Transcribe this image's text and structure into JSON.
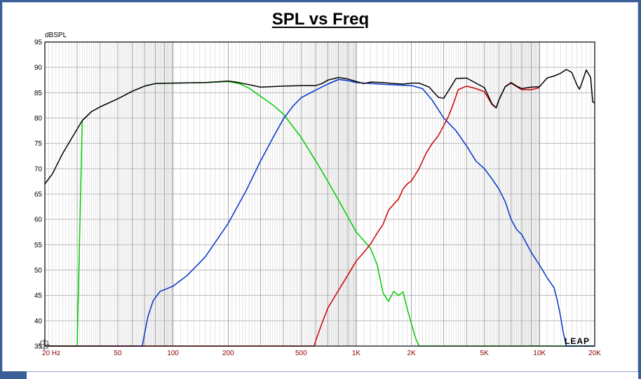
{
  "chart_data": {
    "type": "line",
    "title": "SPL vs Freq",
    "ylabel": "dBSPL",
    "xlabel": "",
    "x_scale": "log",
    "xlim": [
      20,
      20000
    ],
    "ylim": [
      35,
      95
    ],
    "y_ticks": [
      35,
      40,
      45,
      50,
      55,
      60,
      65,
      70,
      75,
      80,
      85,
      90,
      95
    ],
    "x_ticks": [
      {
        "value": 20,
        "label": "20 Hz"
      },
      {
        "value": 50,
        "label": "50"
      },
      {
        "value": 100,
        "label": "100"
      },
      {
        "value": 200,
        "label": "200"
      },
      {
        "value": 500,
        "label": "500"
      },
      {
        "value": 1000,
        "label": "1K"
      },
      {
        "value": 2000,
        "label": "2K"
      },
      {
        "value": 5000,
        "label": "5K"
      },
      {
        "value": 10000,
        "label": "10K"
      },
      {
        "value": 20000,
        "label": "20K"
      }
    ],
    "grid": true,
    "watermark": "LEAP",
    "series": [
      {
        "color": "#000000",
        "points": [
          [
            20,
            67
          ],
          [
            22,
            69
          ],
          [
            25,
            73
          ],
          [
            28,
            76
          ],
          [
            32,
            79.5
          ],
          [
            36,
            81.3
          ],
          [
            40,
            82.2
          ],
          [
            50,
            83.8
          ],
          [
            60,
            85.3
          ],
          [
            70,
            86.3
          ],
          [
            80,
            86.8
          ],
          [
            100,
            86.9
          ],
          [
            150,
            87.0
          ],
          [
            200,
            87.3
          ],
          [
            220,
            87.1
          ],
          [
            260,
            86.6
          ],
          [
            300,
            86.1
          ],
          [
            400,
            86.3
          ],
          [
            500,
            86.4
          ],
          [
            600,
            86.4
          ],
          [
            650,
            86.8
          ],
          [
            700,
            87.5
          ],
          [
            800,
            88.0
          ],
          [
            900,
            87.7
          ],
          [
            1000,
            87.2
          ],
          [
            1100,
            86.8
          ],
          [
            1200,
            87.1
          ],
          [
            1400,
            87.0
          ],
          [
            1600,
            86.8
          ],
          [
            1800,
            86.7
          ],
          [
            2000,
            86.9
          ],
          [
            2200,
            86.9
          ],
          [
            2500,
            86.1
          ],
          [
            2800,
            84.1
          ],
          [
            3000,
            83.9
          ],
          [
            3200,
            85.5
          ],
          [
            3500,
            87.8
          ],
          [
            4000,
            87.9
          ],
          [
            4500,
            86.9
          ],
          [
            5000,
            86.0
          ],
          [
            5500,
            82.8
          ],
          [
            5800,
            82.0
          ],
          [
            6000,
            83.6
          ],
          [
            6500,
            86.2
          ],
          [
            7000,
            87.0
          ],
          [
            7500,
            86.3
          ],
          [
            8000,
            85.8
          ],
          [
            9000,
            86.1
          ],
          [
            10000,
            86.2
          ],
          [
            11000,
            87.9
          ],
          [
            12000,
            88.3
          ],
          [
            13000,
            88.8
          ],
          [
            14000,
            89.6
          ],
          [
            15000,
            89.0
          ],
          [
            16000,
            86.5
          ],
          [
            16500,
            85.7
          ],
          [
            17000,
            86.9
          ],
          [
            18000,
            89.5
          ],
          [
            19000,
            88.0
          ],
          [
            19500,
            83.2
          ],
          [
            20000,
            83.0
          ]
        ]
      },
      {
        "color": "#00cc00",
        "points": [
          [
            20,
            35
          ],
          [
            30,
            35
          ],
          [
            32,
            79.5
          ],
          [
            36,
            81.3
          ],
          [
            40,
            82.2
          ],
          [
            50,
            83.8
          ],
          [
            60,
            85.3
          ],
          [
            70,
            86.3
          ],
          [
            80,
            86.8
          ],
          [
            100,
            86.9
          ],
          [
            150,
            87.0
          ],
          [
            200,
            87.2
          ],
          [
            230,
            86.8
          ],
          [
            260,
            85.9
          ],
          [
            300,
            84.3
          ],
          [
            350,
            82.6
          ],
          [
            400,
            80.8
          ],
          [
            500,
            76.2
          ],
          [
            600,
            71.6
          ],
          [
            700,
            67.5
          ],
          [
            800,
            63.8
          ],
          [
            900,
            60.5
          ],
          [
            1000,
            57.5
          ],
          [
            1100,
            55.8
          ],
          [
            1200,
            54.2
          ],
          [
            1300,
            51.0
          ],
          [
            1400,
            45.5
          ],
          [
            1500,
            43.8
          ],
          [
            1600,
            45.8
          ],
          [
            1700,
            45.0
          ],
          [
            1800,
            45.7
          ],
          [
            1900,
            42.3
          ],
          [
            2000,
            39.4
          ],
          [
            2100,
            36.7
          ],
          [
            2200,
            35.0
          ],
          [
            2400,
            35.0
          ],
          [
            20000,
            35.0
          ]
        ]
      },
      {
        "color": "#0033cc",
        "points": [
          [
            20,
            35
          ],
          [
            68,
            35
          ],
          [
            70,
            37.5
          ],
          [
            73,
            40.8
          ],
          [
            78,
            44.0
          ],
          [
            85,
            45.8
          ],
          [
            100,
            46.8
          ],
          [
            120,
            49.0
          ],
          [
            150,
            52.6
          ],
          [
            200,
            59.2
          ],
          [
            250,
            65.6
          ],
          [
            300,
            71.5
          ],
          [
            350,
            76.0
          ],
          [
            400,
            79.8
          ],
          [
            450,
            82.3
          ],
          [
            500,
            84.0
          ],
          [
            600,
            85.5
          ],
          [
            700,
            86.7
          ],
          [
            800,
            87.6
          ],
          [
            900,
            87.4
          ],
          [
            1000,
            87.0
          ],
          [
            1200,
            86.8
          ],
          [
            1500,
            86.6
          ],
          [
            2000,
            86.4
          ],
          [
            2300,
            85.8
          ],
          [
            2600,
            83.5
          ],
          [
            3000,
            80.0
          ],
          [
            3500,
            77.5
          ],
          [
            4000,
            74.5
          ],
          [
            4500,
            71.5
          ],
          [
            5000,
            70.0
          ],
          [
            5500,
            68.0
          ],
          [
            6000,
            66.0
          ],
          [
            6500,
            63.5
          ],
          [
            7000,
            60.0
          ],
          [
            7500,
            58.0
          ],
          [
            8000,
            57.0
          ],
          [
            9000,
            53.5
          ],
          [
            10000,
            51.0
          ],
          [
            11000,
            48.5
          ],
          [
            12000,
            46.5
          ],
          [
            12500,
            44.0
          ],
          [
            13000,
            41.0
          ],
          [
            13500,
            37.5
          ],
          [
            14000,
            35.0
          ],
          [
            20000,
            35.0
          ]
        ]
      },
      {
        "color": "#cc0000",
        "points": [
          [
            20,
            35
          ],
          [
            590,
            35
          ],
          [
            600,
            36.0
          ],
          [
            650,
            39.5
          ],
          [
            700,
            42.5
          ],
          [
            800,
            46.0
          ],
          [
            900,
            49.0
          ],
          [
            1000,
            51.8
          ],
          [
            1100,
            53.5
          ],
          [
            1200,
            55.2
          ],
          [
            1300,
            57.3
          ],
          [
            1400,
            59.0
          ],
          [
            1500,
            61.8
          ],
          [
            1600,
            63.0
          ],
          [
            1700,
            64.0
          ],
          [
            1800,
            66.0
          ],
          [
            1900,
            67.0
          ],
          [
            2000,
            67.6
          ],
          [
            2200,
            70.0
          ],
          [
            2400,
            73.0
          ],
          [
            2600,
            75.0
          ],
          [
            2800,
            76.5
          ],
          [
            3000,
            78.5
          ],
          [
            3200,
            80.5
          ],
          [
            3400,
            83.0
          ],
          [
            3600,
            85.6
          ],
          [
            4000,
            86.3
          ],
          [
            4500,
            85.8
          ],
          [
            5000,
            85.2
          ],
          [
            5500,
            82.7
          ],
          [
            5800,
            82.0
          ],
          [
            6000,
            83.6
          ],
          [
            6500,
            86.2
          ],
          [
            7000,
            86.9
          ],
          [
            7500,
            86.2
          ],
          [
            8000,
            85.6
          ],
          [
            9000,
            85.6
          ],
          [
            10000,
            86.0
          ]
        ]
      }
    ]
  }
}
